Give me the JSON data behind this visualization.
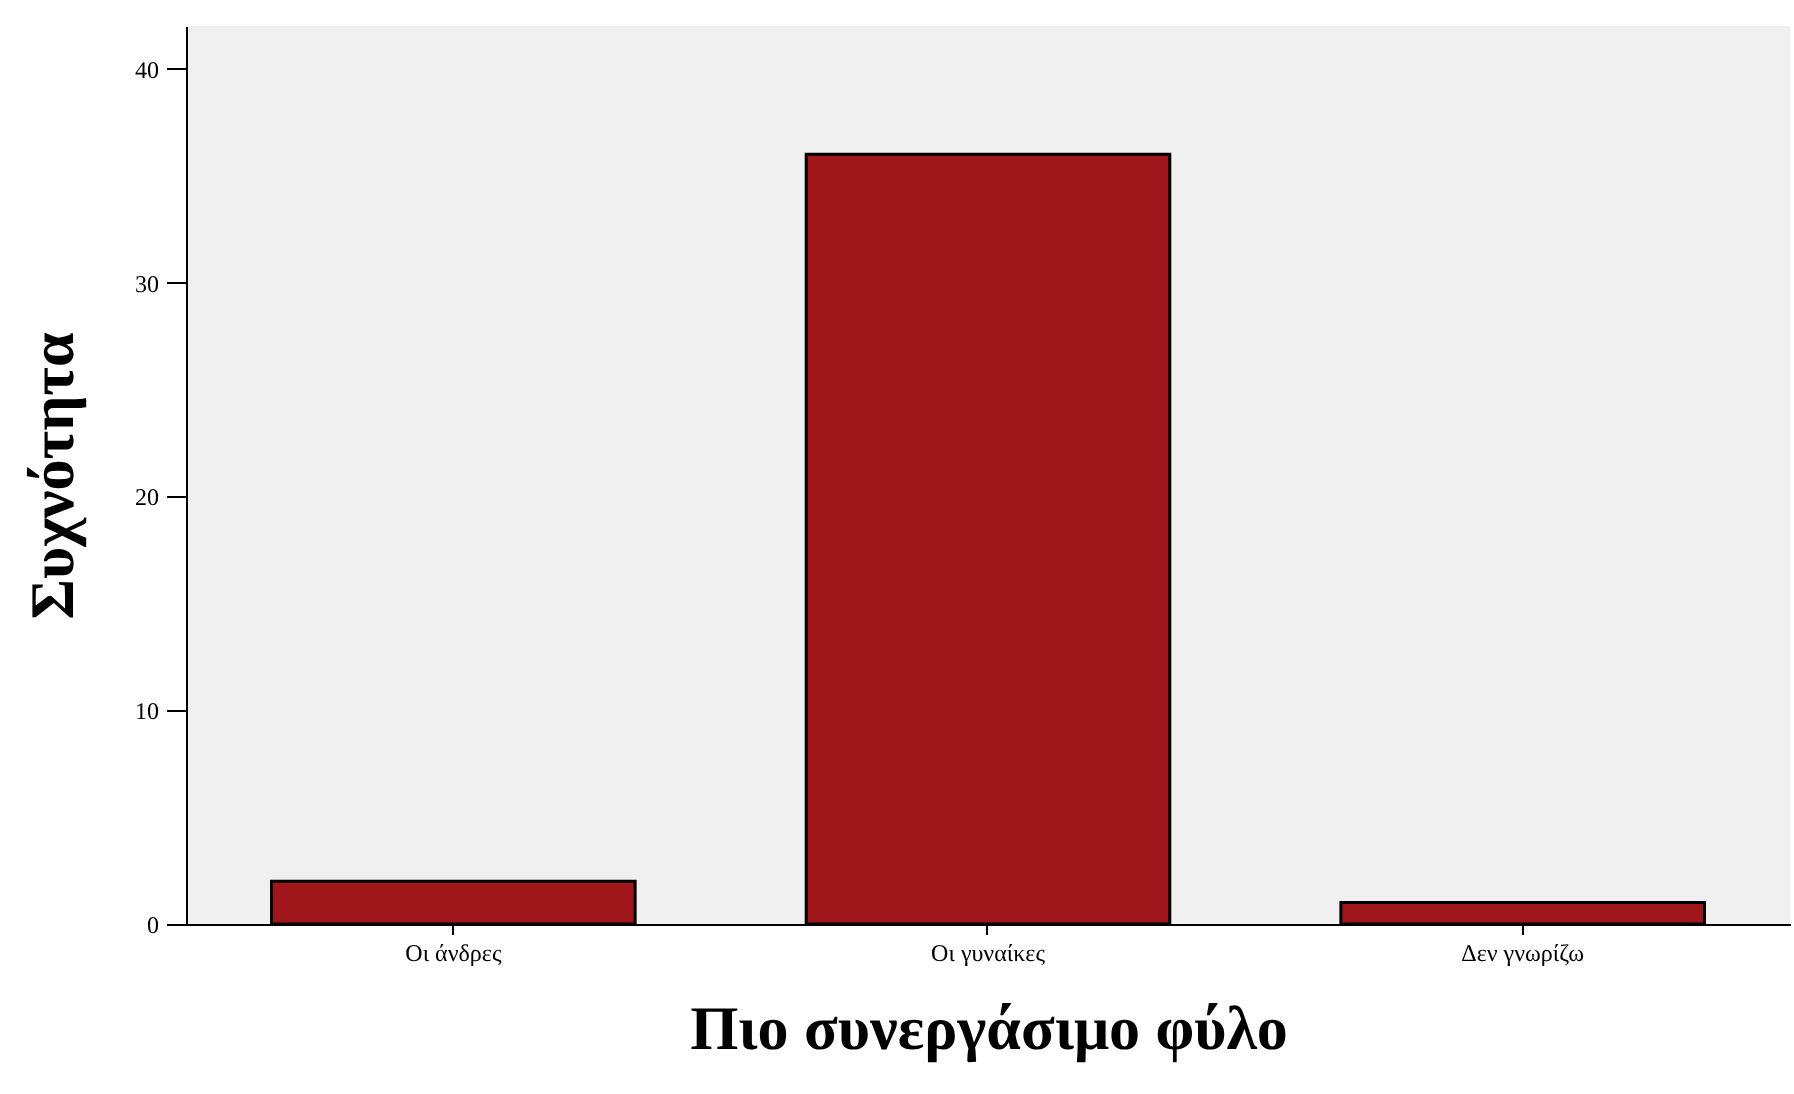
{
  "chart_data": {
    "type": "bar",
    "xlabel": "Πιο συνεργάσιμο φύλο",
    "ylabel": "Συχνότητα",
    "categories": [
      "Οι άνδρες",
      "Οι γυναίκες",
      "Δεν γνωρίζω"
    ],
    "values": [
      2,
      36,
      1
    ],
    "color": "#a0171b",
    "ylim": [
      0,
      42
    ],
    "yticks": [
      0,
      10,
      20,
      30,
      40
    ],
    "grid": false
  }
}
